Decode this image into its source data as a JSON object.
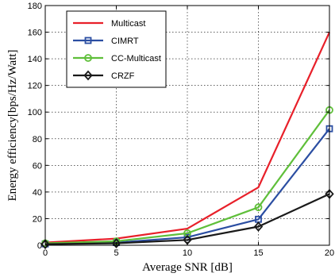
{
  "chart_data": {
    "type": "line",
    "xlabel": "Average SNR [dB]",
    "ylabel": "Energy efficiency[bps/Hz/Watt]",
    "x": [
      0,
      5,
      10,
      15,
      20
    ],
    "xlim": [
      0,
      20
    ],
    "ylim": [
      0,
      180
    ],
    "xticks": [
      0,
      5,
      10,
      15,
      20
    ],
    "yticks": [
      0,
      20,
      40,
      60,
      80,
      100,
      120,
      140,
      160,
      180
    ],
    "grid": true,
    "legend_position": "top-left",
    "series": [
      {
        "name": "Multicast",
        "values": [
          2,
          5,
          12.5,
          43.5,
          160
        ],
        "color": "#e8202a",
        "marker": "none"
      },
      {
        "name": "CIMRT",
        "values": [
          1,
          2,
          6,
          19.5,
          87.5
        ],
        "color": "#2b4ea2",
        "marker": "square"
      },
      {
        "name": "CC-Multicast",
        "values": [
          1.5,
          3,
          9,
          28.5,
          101.5
        ],
        "color": "#5fbf3a",
        "marker": "circle"
      },
      {
        "name": "CRZF",
        "values": [
          0.8,
          1.5,
          4,
          14,
          38.5
        ],
        "color": "#1a1a1a",
        "marker": "diamond"
      }
    ]
  }
}
